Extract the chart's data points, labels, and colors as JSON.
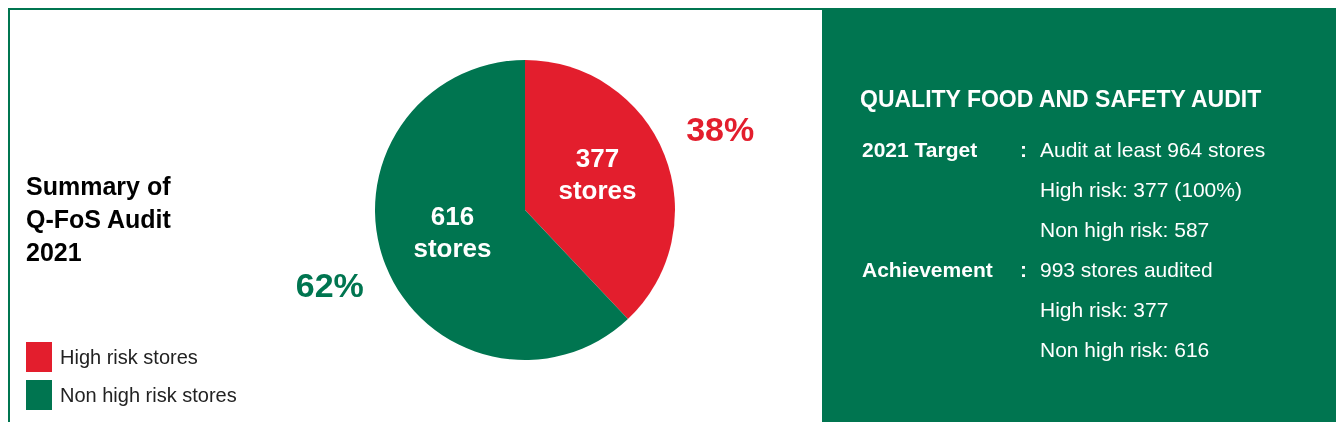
{
  "chart_data": [
    {
      "type": "pie",
      "title": "Summary of Q-FoS Audit 2021",
      "categories": [
        "High risk stores",
        "Non high risk stores"
      ],
      "values": [
        377,
        616
      ],
      "colors": [
        "#e31e2d",
        "#007550"
      ],
      "value_labels": [
        "377 stores",
        "616 stores"
      ],
      "annotations": [
        "38%",
        "62%"
      ],
      "legend": "bottom left"
    },
    {
      "type": "other",
      "title": "QUALITY FOOD AND SAFETY AUDIT",
      "annotations": [
        "2021 Target\t:\tAudit at least 964 stores",
        "\t\tHigh risk:  377 (100%)",
        "\t\tNon high risk: 587",
        "Achievement\t:\t993 stores audited",
        "\t\tHigh risk: 377",
        "\t\tNon high risk: 616"
      ]
    }
  ]
}
